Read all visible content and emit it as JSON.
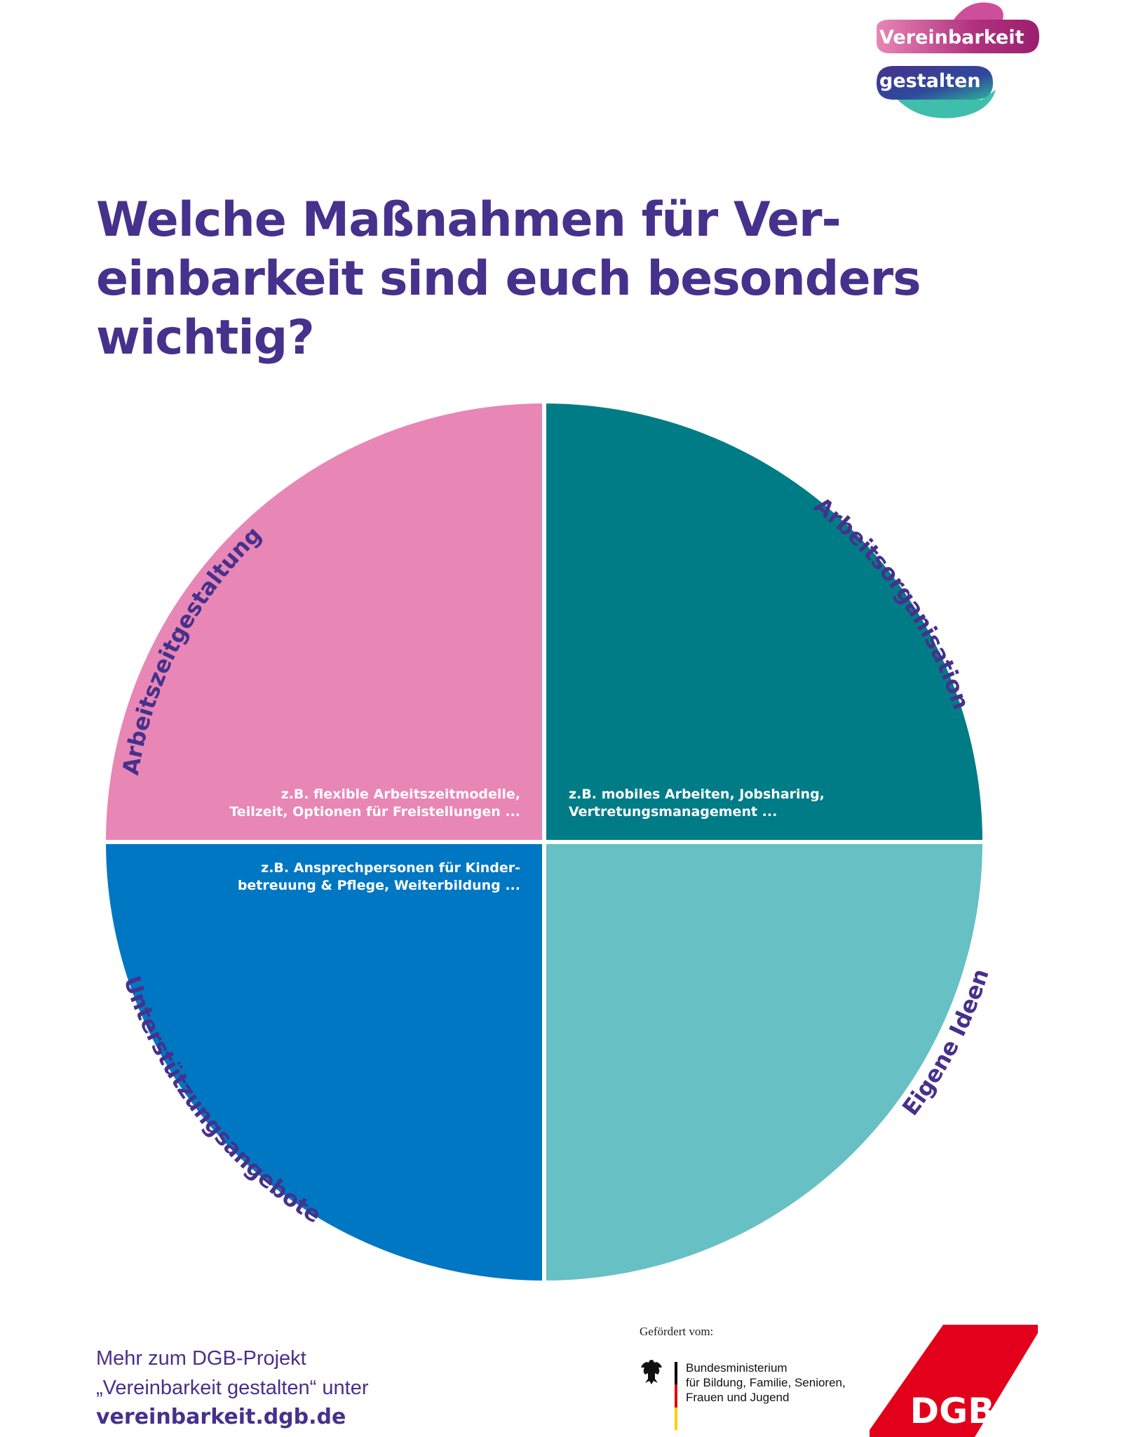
{
  "logo": {
    "line1": "Vereinbarkeit",
    "line2": "gestalten"
  },
  "title": {
    "lines": [
      "Welche Maßnahmen für Ver-",
      "einbarkeit sind euch besonders",
      "wichtig?"
    ]
  },
  "diagram": {
    "quadrants": [
      {
        "id": "top-left",
        "label": "Arbeitszeitgestaltung",
        "color": "#e886b5",
        "hint": [
          "z.B. flexible Arbeitszeitmodelle,",
          "Teilzeit, Optionen für Freistellungen ..."
        ]
      },
      {
        "id": "top-right",
        "label": "Arbeitsorganisation",
        "color": "#007c87",
        "hint": [
          "z.B. mobiles Arbeiten, Jobsharing,",
          "Vertretungsmanagement ..."
        ]
      },
      {
        "id": "bottom-left",
        "label": "Unterstützungsangebote",
        "color": "#0077c2",
        "hint": [
          "z.B. Ansprechpersonen für Kinder-",
          "betreuung & Pflege, Weiterbildung ..."
        ]
      },
      {
        "id": "bottom-right",
        "label": "Eigene Ideen",
        "color": "#66c0c4",
        "hint": []
      }
    ],
    "label_color": "#46318c"
  },
  "footer": {
    "info_line1": "Mehr zum DGB-Projekt",
    "info_line2": "„Vereinbarkeit gestalten“ unter",
    "url": "vereinbarkeit.dgb.de",
    "funded_by": "Gefördert vom:",
    "ministry_lines": [
      "Bundesministerium",
      "für Bildung, Familie, Senioren,",
      "Frauen und Jugend"
    ],
    "dgb_logo_text": "DGB"
  },
  "colors": {
    "brand_purple": "#46318c",
    "dgb_red": "#e3001b"
  }
}
